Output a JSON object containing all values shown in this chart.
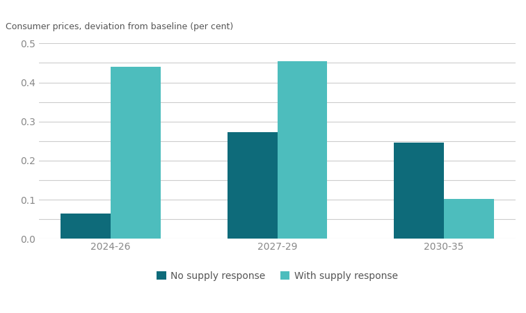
{
  "categories": [
    "2024-26",
    "2027-29",
    "2030-35"
  ],
  "no_supply_response": [
    0.065,
    0.272,
    0.247
  ],
  "with_supply_response": [
    0.44,
    0.455,
    0.102
  ],
  "no_supply_color": "#0e6b7a",
  "with_supply_color": "#4dbdbd",
  "ylabel": "Consumer prices, deviation from baseline (per cent)",
  "ylim": [
    0.0,
    0.5
  ],
  "yticks": [
    0.0,
    0.05,
    0.1,
    0.15,
    0.2,
    0.25,
    0.3,
    0.35,
    0.4,
    0.45,
    0.5
  ],
  "ytick_labels": [
    "0.0",
    "",
    "0.1",
    "",
    "0.2",
    "",
    "0.3",
    "",
    "0.4",
    "",
    "0.5"
  ],
  "legend_labels": [
    "No supply response",
    "With supply response"
  ],
  "background_color": "#ffffff",
  "bar_width": 0.3,
  "grid_color": "#cccccc",
  "grid_linestyle": "-",
  "text_color": "#888888"
}
